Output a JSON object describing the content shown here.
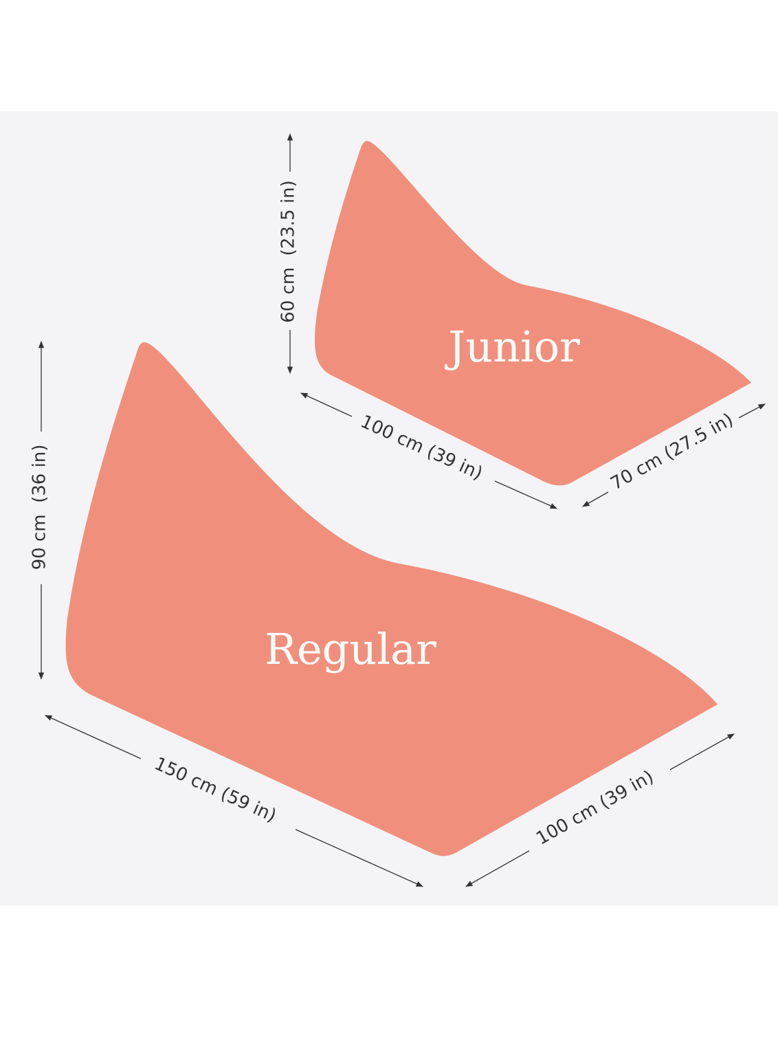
{
  "products": [
    {
      "name": "Junior",
      "height": "60 cm  (23.5 in)",
      "length": "100 cm (39 in)",
      "width": "70 cm (27.5 in)"
    },
    {
      "name": "Regular",
      "height": "90 cm  (36 in)",
      "length": "150 cm (59 in)",
      "width": "100 cm (39 in)"
    }
  ]
}
